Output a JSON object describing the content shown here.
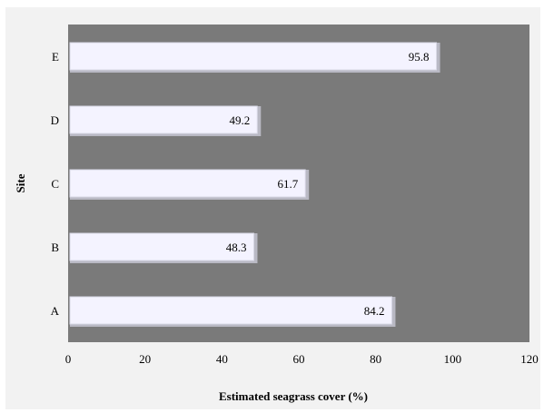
{
  "chart_data": {
    "type": "bar",
    "orientation": "horizontal",
    "title": "",
    "xlabel": "Estimated seagrass  cover (%)",
    "ylabel": "Site",
    "categories": [
      "A",
      "B",
      "C",
      "D",
      "E"
    ],
    "values": [
      84.2,
      48.3,
      61.7,
      49.2,
      95.8
    ],
    "value_labels": [
      "84.2",
      "48.3",
      "61.7",
      "49.2",
      "95.8"
    ],
    "xlim": [
      0,
      120
    ],
    "xticks": [
      "0",
      "20",
      "40",
      "60",
      "80",
      "100",
      "120"
    ],
    "grid": false,
    "legend": "none",
    "colors": {
      "plot_background": "#7a7a7a",
      "bar_fill": "#f4f3ff",
      "bar_shadow": "#b9b9c4",
      "figure_background": "#f2f2f2"
    }
  }
}
